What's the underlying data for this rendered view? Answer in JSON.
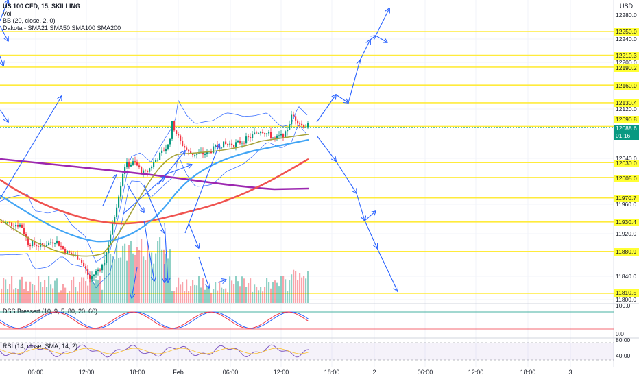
{
  "header": {
    "symbol": "US 100 CFD, 15, SKILLING",
    "vol": "Vol",
    "bb": "BB (20, close, 2, 0)",
    "ma": "Dakota - SMA21 SMA50 SMA100 SMA200"
  },
  "currency": "USD",
  "price_axis": {
    "ticks": [
      "12280.0",
      "12240.0",
      "12200.0",
      "12120.0",
      "12040.0",
      "11960.0",
      "11920.0",
      "11840.0",
      "11800.0"
    ],
    "levels": [
      "12250.0",
      "12210.3",
      "12190.2",
      "12160.0",
      "12130.4",
      "12090.8",
      "12030.0",
      "12005.0",
      "11970.7",
      "11930.4",
      "11880.9",
      "11810.5"
    ],
    "current_price": "12088.6",
    "countdown": "01:16"
  },
  "dss": {
    "label": "DSS Bressert (10, 9, 5, 80, 20, 60)",
    "ticks": [
      "100.0",
      "0.0"
    ]
  },
  "rsi": {
    "label": "RSI (14, close, SMA, 14, 2)",
    "ticks": [
      "80.00",
      "40.00"
    ]
  },
  "time_axis": [
    "06:00",
    "12:00",
    "18:00",
    "Feb",
    "06:00",
    "12:00",
    "18:00",
    "2",
    "06:00",
    "12:00",
    "18:00",
    "3"
  ],
  "colors": {
    "up": "#089981",
    "down": "#f23645",
    "level": "#ffeb3b",
    "arrow": "#2962ff",
    "sma21": "#a5a23a",
    "sma50": "#42a5f5",
    "sma100": "#ef5350",
    "sma200": "#9c27b0"
  }
}
